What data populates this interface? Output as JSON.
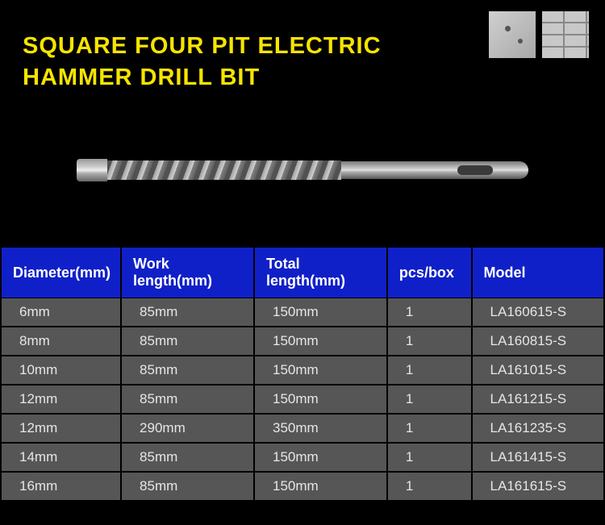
{
  "title": "SQUARE FOUR PIT ELECTRIC\nHAMMER DRILL BIT",
  "colors": {
    "page_bg": "#000000",
    "title_color": "#f7e400",
    "header_bg": "#1020c8",
    "header_text": "#ffffff",
    "cell_bg": "#565656",
    "cell_text": "#e6e6e6"
  },
  "typography": {
    "title_fontsize": 29,
    "title_weight": "bold",
    "header_fontsize": 18,
    "cell_fontsize": 17,
    "font_family": "Arial"
  },
  "material_icons": [
    "concrete",
    "brick"
  ],
  "table": {
    "columns": [
      {
        "label": "Diameter(mm)",
        "width_pct": 18.5
      },
      {
        "label": "Work length(mm)",
        "width_pct": 22.5
      },
      {
        "label": "Total length(mm)",
        "width_pct": 22.5
      },
      {
        "label": "pcs/box",
        "width_pct": 14
      },
      {
        "label": "Model",
        "width_pct": 22.5
      }
    ],
    "rows": [
      [
        "6mm",
        "85mm",
        "150mm",
        "1",
        "LA160615-S"
      ],
      [
        "8mm",
        "85mm",
        "150mm",
        "1",
        "LA160815-S"
      ],
      [
        "10mm",
        "85mm",
        "150mm",
        "1",
        "LA161015-S"
      ],
      [
        "12mm",
        "85mm",
        "150mm",
        "1",
        "LA161215-S"
      ],
      [
        "12mm",
        "290mm",
        "350mm",
        "1",
        "LA161235-S"
      ],
      [
        "14mm",
        "85mm",
        "150mm",
        "1",
        "LA161415-S"
      ],
      [
        "16mm",
        "85mm",
        "150mm",
        "1",
        "LA161615-S"
      ]
    ]
  }
}
